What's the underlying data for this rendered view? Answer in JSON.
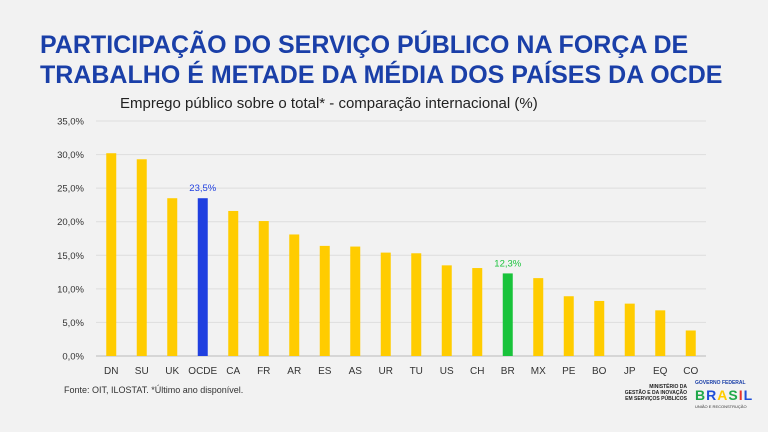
{
  "title": "PARTICIPAÇÃO DO SERVIÇO PÚBLICO NA FORÇA DE TRABALHO É METADE DA MÉDIA DOS PAÍSES DA OCDE",
  "subtitle": "Emprego público sobre o total* - comparação internacional (%)",
  "source": "Fonte: OIT, ILOSTAT. *Último ano disponível.",
  "logos": {
    "ministry": [
      "MINISTÉRIO DA",
      "GESTÃO E DA INOVAÇÃO",
      "EM SERVIÇOS PÚBLICOS"
    ],
    "gov_top": "GOVERNO FEDERAL",
    "gov_mark": "BRASIL",
    "gov_bottom": "UNIÃO E RECONSTRUÇÃO"
  },
  "colors": {
    "bar_default": "#ffcc00",
    "bar_ocde": "#1f3fe0",
    "bar_br": "#19c33b",
    "label_ocde": "#1f3fe0",
    "label_br": "#19c33b",
    "title": "#1a3fa8",
    "corner_red": "#e8342b",
    "corner_blue": "#1f4fd8",
    "corner_green": "#1fa84a",
    "corner_yellow": "#ffcc00"
  },
  "chart_data": {
    "type": "bar",
    "categories": [
      "DN",
      "SU",
      "UK",
      "OCDE",
      "CA",
      "FR",
      "AR",
      "ES",
      "AS",
      "UR",
      "TU",
      "US",
      "CH",
      "BR",
      "MX",
      "PE",
      "BO",
      "JP",
      "EQ",
      "CO"
    ],
    "values": [
      30.2,
      29.3,
      23.5,
      23.5,
      21.6,
      20.1,
      18.1,
      16.4,
      16.3,
      15.4,
      15.3,
      13.5,
      13.1,
      12.3,
      11.6,
      8.9,
      8.2,
      7.8,
      6.8,
      3.8
    ],
    "highlight": {
      "OCDE": {
        "label": "23,5%",
        "color_key": "bar_ocde"
      },
      "BR": {
        "label": "12,3%",
        "color_key": "bar_br"
      }
    },
    "ylim": [
      0,
      35
    ],
    "yticks": [
      "0,0%",
      "5,0%",
      "10,0%",
      "15,0%",
      "20,0%",
      "25,0%",
      "30,0%",
      "35,0%"
    ],
    "grid": true,
    "legend": "none"
  }
}
